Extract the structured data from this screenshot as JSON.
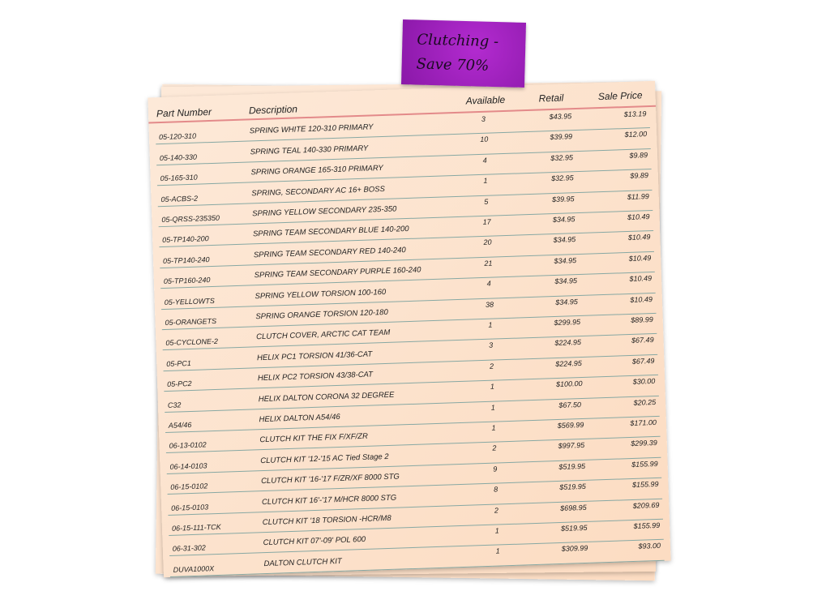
{
  "sticky_note": {
    "line1": "Clutching -",
    "line2": "Save 70%",
    "color": "#9b20b8"
  },
  "columns": {
    "part": "Part Number",
    "description": "Description",
    "available": "Available",
    "retail": "Retail",
    "sale": "Sale Price"
  },
  "rows": [
    {
      "part": "05-120-310",
      "desc": "SPRING WHITE 120-310 PRIMARY",
      "available": "3",
      "retail": "$43.95",
      "sale": "$13.19"
    },
    {
      "part": "05-140-330",
      "desc": "SPRING TEAL 140-330 PRIMARY",
      "available": "10",
      "retail": "$39.99",
      "sale": "$12.00"
    },
    {
      "part": "05-165-310",
      "desc": "SPRING ORANGE 165-310 PRIMARY",
      "available": "4",
      "retail": "$32.95",
      "sale": "$9.89"
    },
    {
      "part": "05-ACBS-2",
      "desc": "SPRING, SECONDARY AC 16+ BOSS",
      "available": "1",
      "retail": "$32.95",
      "sale": "$9.89"
    },
    {
      "part": "05-QRSS-235350",
      "desc": "SPRING YELLOW SECONDARY 235-350",
      "available": "5",
      "retail": "$39.95",
      "sale": "$11.99"
    },
    {
      "part": "05-TP140-200",
      "desc": "SPRING TEAM SECONDARY BLUE 140-200",
      "available": "17",
      "retail": "$34.95",
      "sale": "$10.49"
    },
    {
      "part": "05-TP140-240",
      "desc": "SPRING TEAM SECONDARY RED 140-240",
      "available": "20",
      "retail": "$34.95",
      "sale": "$10.49"
    },
    {
      "part": "05-TP160-240",
      "desc": "SPRING TEAM SECONDARY PURPLE 160-240",
      "available": "21",
      "retail": "$34.95",
      "sale": "$10.49"
    },
    {
      "part": "05-YELLOWTS",
      "desc": "SPRING YELLOW TORSION 100-160",
      "available": "4",
      "retail": "$34.95",
      "sale": "$10.49"
    },
    {
      "part": "05-ORANGETS",
      "desc": "SPRING ORANGE TORSION 120-180",
      "available": "38",
      "retail": "$34.95",
      "sale": "$10.49"
    },
    {
      "part": "05-CYCLONE-2",
      "desc": "CLUTCH COVER, ARCTIC CAT TEAM",
      "available": "1",
      "retail": "$299.95",
      "sale": "$89.99"
    },
    {
      "part": "05-PC1",
      "desc": "HELIX PC1 TORSION 41/36-CAT",
      "available": "3",
      "retail": "$224.95",
      "sale": "$67.49"
    },
    {
      "part": "05-PC2",
      "desc": "HELIX PC2 TORSION 43/38-CAT",
      "available": "2",
      "retail": "$224.95",
      "sale": "$67.49"
    },
    {
      "part": "C32",
      "desc": "HELIX DALTON CORONA 32 DEGREE",
      "available": "1",
      "retail": "$100.00",
      "sale": "$30.00"
    },
    {
      "part": "A54/46",
      "desc": "HELIX DALTON A54/46",
      "available": "1",
      "retail": "$67.50",
      "sale": "$20.25"
    },
    {
      "part": "06-13-0102",
      "desc": "CLUTCH KIT THE FIX F/XF/ZR",
      "available": "1",
      "retail": "$569.99",
      "sale": "$171.00"
    },
    {
      "part": "06-14-0103",
      "desc": "CLUTCH KIT '12-'15 AC Tied Stage 2",
      "available": "2",
      "retail": "$997.95",
      "sale": "$299.39"
    },
    {
      "part": "06-15-0102",
      "desc": "CLUTCH KIT '16-'17 F/ZR/XF 8000 STG",
      "available": "9",
      "retail": "$519.95",
      "sale": "$155.99"
    },
    {
      "part": "06-15-0103",
      "desc": "CLUTCH KIT 16'-'17 M/HCR 8000 STG",
      "available": "8",
      "retail": "$519.95",
      "sale": "$155.99"
    },
    {
      "part": "06-15-111-TCK",
      "desc": "CLUTCH KIT '18 TORSION -HCR/M8",
      "available": "2",
      "retail": "$698.95",
      "sale": "$209.69"
    },
    {
      "part": "06-31-302",
      "desc": "CLUTCH KIT 07'-09' POL 600",
      "available": "1",
      "retail": "$519.95",
      "sale": "$155.99"
    },
    {
      "part": "DUVA1000X",
      "desc": "DALTON CLUTCH KIT",
      "available": "1",
      "retail": "$309.99",
      "sale": "$93.00"
    }
  ]
}
